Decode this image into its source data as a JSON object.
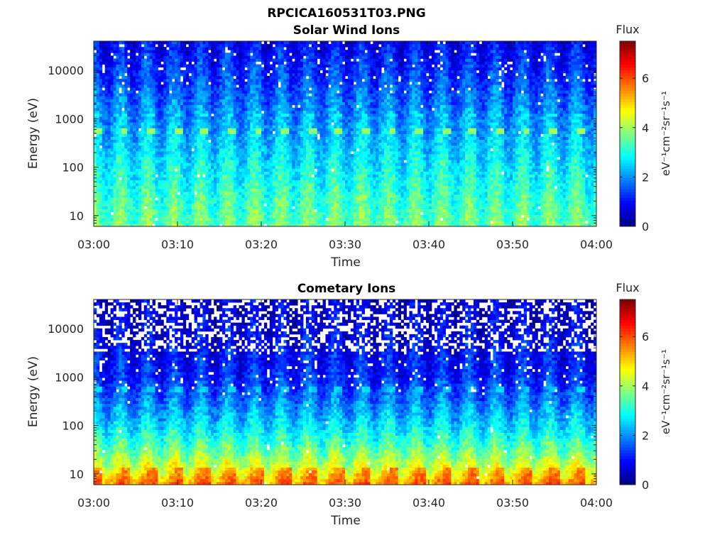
{
  "figure": {
    "title": "RPCICA160531T03.PNG"
  },
  "panels": [
    {
      "title": "Solar Wind Ions",
      "ylabel": "Energy (eV)",
      "xlabel": "Time",
      "colorbar_title": "Flux",
      "colorbar_units": "eV⁻¹cm⁻²sr⁻¹s⁻¹"
    },
    {
      "title": "Cometary Ions",
      "ylabel": "Energy (eV)",
      "xlabel": "Time",
      "colorbar_title": "Flux",
      "colorbar_units": "eV⁻¹cm⁻²sr⁻¹s⁻¹"
    }
  ],
  "chart_data": [
    {
      "type": "heatmap",
      "title": "Solar Wind Ions",
      "xlabel": "Time",
      "ylabel": "Energy (eV)",
      "x_ticks": [
        "03:00",
        "03:10",
        "03:20",
        "03:30",
        "03:40",
        "03:50",
        "04:00"
      ],
      "x_range": [
        "03:00",
        "04:00"
      ],
      "y_scale": "log",
      "y_ticks": [
        10,
        100,
        1000,
        10000
      ],
      "y_tick_labels": [
        "10",
        "100",
        "1000",
        "10000"
      ],
      "y_range": [
        6,
        40000
      ],
      "colorbar": {
        "label": "Flux",
        "units": "eV⁻¹cm⁻²sr⁻¹s⁻¹",
        "range": [
          0,
          7.5
        ],
        "ticks": [
          0,
          2,
          4,
          6
        ],
        "colormap": "jet"
      },
      "time_bins": 180,
      "energy_bins": 64,
      "features": {
        "background_profile": {
          "energy_eV": [
            6,
            20,
            100,
            1000,
            10000,
            40000
          ],
          "flux": [
            3.6,
            3.3,
            2.8,
            2.1,
            1.3,
            0.9
          ]
        },
        "periodic_peak_energy_eV": 600,
        "periodic_peak_flux": 3.9,
        "period_minutes": 3.2,
        "secondary_peak_energy_eV": 1200,
        "secondary_peak_flux": 2.9
      }
    },
    {
      "type": "heatmap",
      "title": "Cometary Ions",
      "xlabel": "Time",
      "ylabel": "Energy (eV)",
      "x_ticks": [
        "03:00",
        "03:10",
        "03:20",
        "03:30",
        "03:40",
        "03:50",
        "04:00"
      ],
      "x_range": [
        "03:00",
        "04:00"
      ],
      "y_scale": "log",
      "y_ticks": [
        10,
        100,
        1000,
        10000
      ],
      "y_tick_labels": [
        "10",
        "100",
        "1000",
        "10000"
      ],
      "y_range": [
        6,
        40000
      ],
      "colorbar": {
        "label": "Flux",
        "units": "eV⁻¹cm⁻²sr⁻¹s⁻¹",
        "range": [
          0,
          7.5
        ],
        "ticks": [
          0,
          2,
          4,
          6
        ],
        "colormap": "jet"
      },
      "time_bins": 180,
      "energy_bins": 64,
      "features": {
        "background_profile": {
          "energy_eV": [
            6,
            12,
            30,
            100,
            300,
            1000,
            10000,
            40000
          ],
          "flux": [
            5.6,
            4.6,
            3.6,
            2.6,
            1.9,
            1.2,
            0.8,
            0.6
          ]
        },
        "periodic_peak_energy_eV": 600,
        "periodic_peak_flux": 2.5,
        "period_minutes": 3.2,
        "low_energy_peak_flux": 6.0
      }
    }
  ]
}
